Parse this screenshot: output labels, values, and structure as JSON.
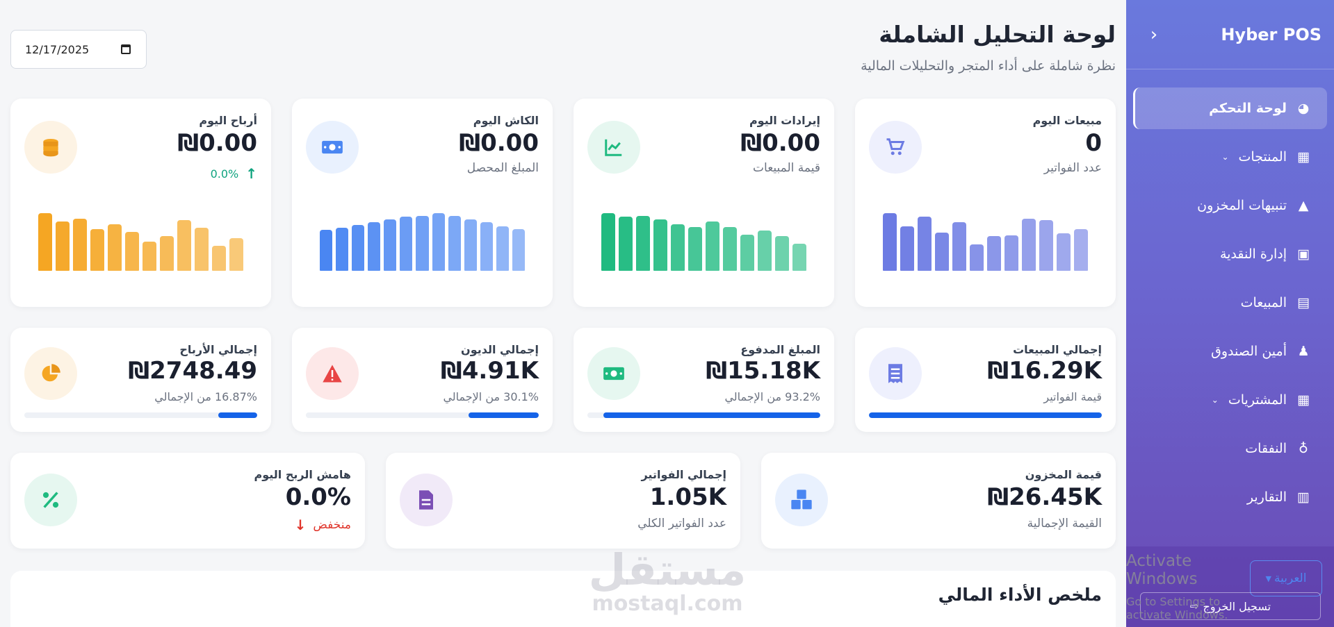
{
  "sidebar": {
    "brand": "Hyber POS",
    "collapse_icon": "‹",
    "items": [
      {
        "label": "لوحة التحكم",
        "icon": "dashboard-icon",
        "active": true,
        "chevron": false
      },
      {
        "label": "المنتجات",
        "icon": "boxes-icon",
        "active": false,
        "chevron": true
      },
      {
        "label": "تنبيهات المخزون",
        "icon": "warning-icon",
        "active": false,
        "chevron": false
      },
      {
        "label": "إدارة النقدية",
        "icon": "money-icon",
        "active": false,
        "chevron": false
      },
      {
        "label": "المبيعات",
        "icon": "cash-register-icon",
        "active": false,
        "chevron": false
      },
      {
        "label": "أمين الصندوق",
        "icon": "user-tie-icon",
        "active": false,
        "chevron": false
      },
      {
        "label": "المشتريات",
        "icon": "boxes-icon",
        "active": false,
        "chevron": true
      },
      {
        "label": "النفقات",
        "icon": "money-bag-icon",
        "active": false,
        "chevron": false
      },
      {
        "label": "التقارير",
        "icon": "chart-icon",
        "active": false,
        "chevron": false
      }
    ],
    "language": "العربية",
    "logout": "تسجيل الخروج"
  },
  "watermark": {
    "line1": "Activate Windows",
    "line2": "Go to Settings to activate Windows.",
    "mostaql_ar": "مستقل",
    "mostaql_en": "mostaql.com"
  },
  "header": {
    "title": "لوحة التحليل الشاملة",
    "subtitle": "نظرة شاملة على أداء المتجر والتحليلات المالية",
    "date": "12/17/2025"
  },
  "today_cards": [
    {
      "title": "مبيعات اليوم",
      "value": "0",
      "sub": "عدد الفواتير",
      "icon": "cart-icon",
      "color": "#6c7be3",
      "bg": "#eef0fd",
      "bars": [
        62,
        48,
        58,
        41,
        52,
        28,
        37,
        38,
        56,
        54,
        40,
        45
      ]
    },
    {
      "title": "إيرادات اليوم",
      "value": "₪0.00",
      "sub": "قيمة المبيعات",
      "icon": "line-chart-icon",
      "color": "#1fba80",
      "bg": "#e6f7f0",
      "bars": [
        62,
        58,
        59,
        55,
        50,
        47,
        53,
        47,
        39,
        43,
        37,
        29
      ]
    },
    {
      "title": "الكاش اليوم",
      "value": "₪0.00",
      "sub": "المبلغ المحصل",
      "icon": "money-bill-icon",
      "color": "#4a86f2",
      "bg": "#e9f1fe",
      "bars": [
        44,
        46,
        49,
        52,
        55,
        58,
        59,
        62,
        59,
        55,
        52,
        48,
        45
      ]
    },
    {
      "title": "أرباح اليوم",
      "value": "₪0.00",
      "sub": "",
      "icon": "coins-icon",
      "color": "#f5a623",
      "bg": "#fdf3e4",
      "trend": "0.0%",
      "bars": [
        62,
        53,
        56,
        45,
        50,
        42,
        31,
        37,
        54,
        46,
        27,
        35
      ]
    }
  ],
  "total_cards": [
    {
      "title": "إجمالي المبيعات",
      "value": "₪16.29K",
      "sub": "قيمة الفواتير",
      "icon": "receipt-icon",
      "color": "#6c7be3",
      "bg": "#eef0fd",
      "progress": 1.0
    },
    {
      "title": "المبلغ المدفوع",
      "value": "₪15.18K",
      "sub": "93.2% من الإجمالي",
      "icon": "money-bill-icon",
      "color": "#1fba80",
      "bg": "#e6f7f0",
      "progress": 0.932
    },
    {
      "title": "إجمالي الديون",
      "value": "₪4.91K",
      "sub": "30.1% من الإجمالي",
      "icon": "alert-icon",
      "color": "#e84545",
      "bg": "#fde8e8",
      "progress": 0.301
    },
    {
      "title": "إجمالي الأرباح",
      "value": "₪2748.49",
      "sub": "16.87% من الإجمالي",
      "icon": "pie-chart-icon",
      "color": "#f5a623",
      "bg": "#fdf3e4",
      "progress": 0.1687
    }
  ],
  "info_cards": [
    {
      "title": "قيمة المخزون",
      "value": "₪26.45K",
      "sub": "القيمة الإجمالية",
      "icon": "boxes-icon",
      "color": "#4a86f2",
      "bg": "#e9f1fe"
    },
    {
      "title": "إجمالي الفواتير",
      "value": "1.05K",
      "sub": "عدد الفواتير الكلي",
      "icon": "file-icon",
      "color": "#7b4fb5",
      "bg": "#f1eaf8"
    },
    {
      "title": "هامش الربح اليوم",
      "value": "0.0%",
      "sub": "منخفض",
      "icon": "percent-icon",
      "color": "#1fba80",
      "bg": "#e6f7f0"
    }
  ],
  "summary": {
    "title": "ملخص الأداء المالي"
  }
}
